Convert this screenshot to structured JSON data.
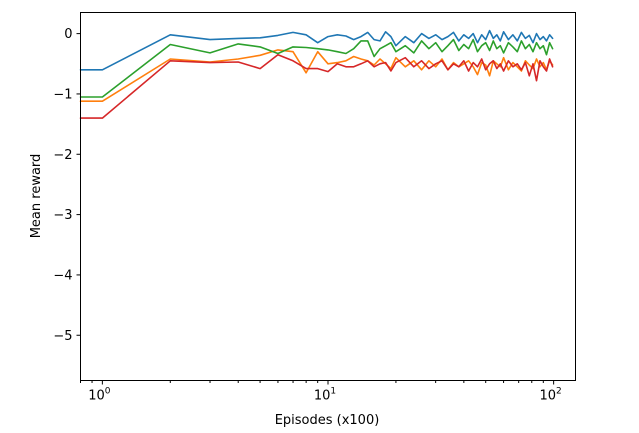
{
  "chart_data": {
    "type": "line",
    "title": "",
    "xlabel": "Episodes (x100)",
    "ylabel": "Mean reward",
    "xscale": "log",
    "xlim": [
      0.8,
      125
    ],
    "ylim": [
      -5.75,
      0.35
    ],
    "yticks": [
      0,
      -1,
      -2,
      -3,
      -4,
      -5
    ],
    "ytick_labels": [
      "0",
      "−1",
      "−2",
      "−3",
      "−4",
      "−5"
    ],
    "xticks": [
      {
        "value": 1,
        "base": "10",
        "exp": "0"
      },
      {
        "value": 10,
        "base": "10",
        "exp": "1"
      },
      {
        "value": 100,
        "base": "10",
        "exp": "2"
      }
    ],
    "grid": false,
    "legend": "none",
    "series": [
      {
        "color": "#1f77b4",
        "points": [
          [
            0.8,
            -0.6
          ],
          [
            1,
            -0.6
          ],
          [
            2,
            -0.02
          ],
          [
            3,
            -0.1
          ],
          [
            4,
            -0.08
          ],
          [
            5,
            -0.07
          ],
          [
            6,
            -0.03
          ],
          [
            7,
            0.02
          ],
          [
            8,
            -0.02
          ],
          [
            9,
            -0.15
          ],
          [
            10,
            -0.05
          ],
          [
            11,
            -0.02
          ],
          [
            12,
            -0.04
          ],
          [
            13,
            -0.1
          ],
          [
            14,
            -0.05
          ],
          [
            15,
            0.02
          ],
          [
            16,
            -0.1
          ],
          [
            17,
            -0.12
          ],
          [
            18,
            0.03
          ],
          [
            19,
            -0.05
          ],
          [
            20,
            -0.2
          ],
          [
            22,
            -0.05
          ],
          [
            24,
            -0.15
          ],
          [
            26,
            0.0
          ],
          [
            28,
            -0.08
          ],
          [
            30,
            -0.02
          ],
          [
            32,
            -0.1
          ],
          [
            34,
            -0.05
          ],
          [
            36,
            0.02
          ],
          [
            38,
            -0.12
          ],
          [
            40,
            -0.02
          ],
          [
            42,
            -0.08
          ],
          [
            44,
            0.0
          ],
          [
            46,
            -0.15
          ],
          [
            48,
            -0.02
          ],
          [
            50,
            -0.1
          ],
          [
            52,
            0.05
          ],
          [
            54,
            -0.08
          ],
          [
            56,
            -0.02
          ],
          [
            58,
            -0.12
          ],
          [
            60,
            0.03
          ],
          [
            63,
            -0.1
          ],
          [
            66,
            -0.02
          ],
          [
            69,
            -0.12
          ],
          [
            72,
            0.02
          ],
          [
            75,
            -0.08
          ],
          [
            78,
            -0.03
          ],
          [
            81,
            -0.15
          ],
          [
            84,
            0.0
          ],
          [
            87,
            -0.1
          ],
          [
            90,
            -0.05
          ],
          [
            93,
            -0.12
          ],
          [
            96,
            -0.02
          ],
          [
            99,
            -0.08
          ]
        ]
      },
      {
        "color": "#ff7f0e",
        "points": [
          [
            0.8,
            -1.12
          ],
          [
            1,
            -1.12
          ],
          [
            2,
            -0.42
          ],
          [
            3,
            -0.47
          ],
          [
            4,
            -0.42
          ],
          [
            5,
            -0.36
          ],
          [
            6,
            -0.27
          ],
          [
            7,
            -0.3
          ],
          [
            8,
            -0.65
          ],
          [
            9,
            -0.3
          ],
          [
            10,
            -0.5
          ],
          [
            11,
            -0.48
          ],
          [
            12,
            -0.45
          ],
          [
            13,
            -0.38
          ],
          [
            14,
            -0.42
          ],
          [
            15,
            -0.45
          ],
          [
            16,
            -0.52
          ],
          [
            17,
            -0.42
          ],
          [
            18,
            -0.5
          ],
          [
            19,
            -0.58
          ],
          [
            20,
            -0.4
          ],
          [
            22,
            -0.55
          ],
          [
            24,
            -0.45
          ],
          [
            26,
            -0.6
          ],
          [
            28,
            -0.45
          ],
          [
            30,
            -0.55
          ],
          [
            32,
            -0.42
          ],
          [
            34,
            -0.6
          ],
          [
            36,
            -0.48
          ],
          [
            38,
            -0.55
          ],
          [
            40,
            -0.5
          ],
          [
            42,
            -0.45
          ],
          [
            44,
            -0.55
          ],
          [
            46,
            -0.68
          ],
          [
            48,
            -0.48
          ],
          [
            50,
            -0.52
          ],
          [
            52,
            -0.7
          ],
          [
            54,
            -0.45
          ],
          [
            56,
            -0.5
          ],
          [
            58,
            -0.55
          ],
          [
            60,
            -0.4
          ],
          [
            63,
            -0.6
          ],
          [
            66,
            -0.48
          ],
          [
            69,
            -0.55
          ],
          [
            72,
            -0.62
          ],
          [
            75,
            -0.45
          ],
          [
            78,
            -0.52
          ],
          [
            81,
            -0.58
          ],
          [
            84,
            -0.42
          ],
          [
            87,
            -0.55
          ],
          [
            90,
            -0.48
          ],
          [
            93,
            -0.6
          ],
          [
            96,
            -0.45
          ],
          [
            99,
            -0.52
          ]
        ]
      },
      {
        "color": "#2ca02c",
        "points": [
          [
            0.8,
            -1.05
          ],
          [
            1,
            -1.05
          ],
          [
            2,
            -0.18
          ],
          [
            3,
            -0.32
          ],
          [
            4,
            -0.17
          ],
          [
            5,
            -0.22
          ],
          [
            6,
            -0.33
          ],
          [
            7,
            -0.22
          ],
          [
            8,
            -0.23
          ],
          [
            9,
            -0.25
          ],
          [
            10,
            -0.27
          ],
          [
            11,
            -0.3
          ],
          [
            12,
            -0.33
          ],
          [
            13,
            -0.25
          ],
          [
            14,
            -0.12
          ],
          [
            15,
            -0.12
          ],
          [
            16,
            -0.38
          ],
          [
            17,
            -0.25
          ],
          [
            18,
            -0.2
          ],
          [
            19,
            -0.15
          ],
          [
            20,
            -0.3
          ],
          [
            22,
            -0.2
          ],
          [
            24,
            -0.32
          ],
          [
            26,
            -0.12
          ],
          [
            28,
            -0.25
          ],
          [
            30,
            -0.15
          ],
          [
            32,
            -0.3
          ],
          [
            34,
            -0.2
          ],
          [
            36,
            -0.1
          ],
          [
            38,
            -0.28
          ],
          [
            40,
            -0.18
          ],
          [
            42,
            -0.25
          ],
          [
            44,
            -0.1
          ],
          [
            46,
            -0.3
          ],
          [
            48,
            -0.2
          ],
          [
            50,
            -0.15
          ],
          [
            52,
            -0.28
          ],
          [
            54,
            -0.12
          ],
          [
            56,
            -0.25
          ],
          [
            58,
            -0.2
          ],
          [
            60,
            -0.32
          ],
          [
            63,
            -0.15
          ],
          [
            66,
            -0.22
          ],
          [
            69,
            -0.3
          ],
          [
            72,
            -0.12
          ],
          [
            75,
            -0.25
          ],
          [
            78,
            -0.18
          ],
          [
            81,
            -0.3
          ],
          [
            84,
            -0.15
          ],
          [
            87,
            -0.25
          ],
          [
            90,
            -0.2
          ],
          [
            93,
            -0.35
          ],
          [
            96,
            -0.15
          ],
          [
            99,
            -0.25
          ]
        ]
      },
      {
        "color": "#d62728",
        "points": [
          [
            0.8,
            -1.4
          ],
          [
            1,
            -1.4
          ],
          [
            2,
            -0.45
          ],
          [
            3,
            -0.48
          ],
          [
            4,
            -0.47
          ],
          [
            5,
            -0.58
          ],
          [
            6,
            -0.35
          ],
          [
            7,
            -0.45
          ],
          [
            8,
            -0.58
          ],
          [
            9,
            -0.58
          ],
          [
            10,
            -0.63
          ],
          [
            11,
            -0.5
          ],
          [
            12,
            -0.55
          ],
          [
            13,
            -0.55
          ],
          [
            14,
            -0.5
          ],
          [
            15,
            -0.45
          ],
          [
            16,
            -0.55
          ],
          [
            17,
            -0.5
          ],
          [
            18,
            -0.48
          ],
          [
            19,
            -0.62
          ],
          [
            20,
            -0.48
          ],
          [
            22,
            -0.4
          ],
          [
            24,
            -0.55
          ],
          [
            26,
            -0.45
          ],
          [
            28,
            -0.58
          ],
          [
            30,
            -0.5
          ],
          [
            32,
            -0.45
          ],
          [
            34,
            -0.6
          ],
          [
            36,
            -0.5
          ],
          [
            38,
            -0.55
          ],
          [
            40,
            -0.45
          ],
          [
            42,
            -0.62
          ],
          [
            44,
            -0.48
          ],
          [
            46,
            -0.55
          ],
          [
            48,
            -0.42
          ],
          [
            50,
            -0.6
          ],
          [
            52,
            -0.5
          ],
          [
            54,
            -0.45
          ],
          [
            56,
            -0.58
          ],
          [
            58,
            -0.5
          ],
          [
            60,
            -0.62
          ],
          [
            63,
            -0.45
          ],
          [
            66,
            -0.55
          ],
          [
            69,
            -0.5
          ],
          [
            72,
            -0.6
          ],
          [
            75,
            -0.48
          ],
          [
            78,
            -0.7
          ],
          [
            81,
            -0.5
          ],
          [
            84,
            -0.78
          ],
          [
            87,
            -0.45
          ],
          [
            90,
            -0.55
          ],
          [
            93,
            -0.62
          ],
          [
            96,
            -0.42
          ],
          [
            99,
            -0.55
          ]
        ]
      }
    ]
  }
}
